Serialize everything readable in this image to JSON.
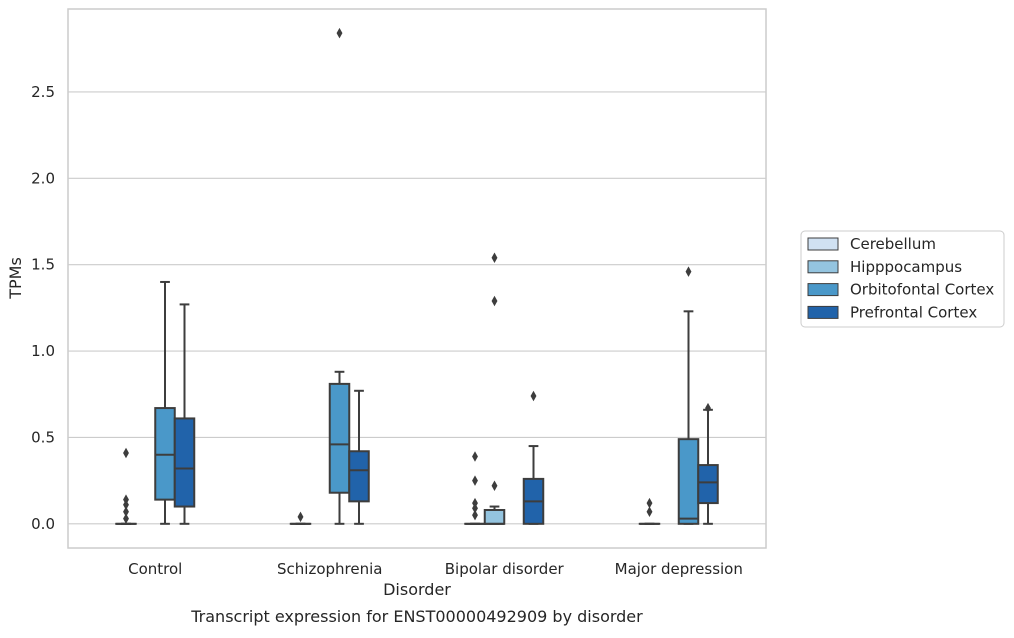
{
  "chart_data": {
    "type": "box",
    "title": "",
    "caption": "Transcript expression for ENST00000492909 by disorder",
    "xlabel": "Disorder",
    "ylabel": "TPMs",
    "ylim": [
      -0.14,
      2.98
    ],
    "yticks": [
      0.0,
      0.5,
      1.0,
      1.5,
      2.0,
      2.5
    ],
    "ytick_labels": [
      "0.0",
      "0.5",
      "1.0",
      "1.5",
      "2.0",
      "2.5"
    ],
    "grid": "horizontal",
    "legend_position": "center-right outside",
    "categories": [
      "Control",
      "Schizophrenia",
      "Bipolar disorder",
      "Major depression"
    ],
    "series": [
      {
        "name": "Cerebellum",
        "color": "#d0e1f2",
        "boxes": [
          {
            "q1": 0,
            "median": 0,
            "q3": 0,
            "whisker_low": 0,
            "whisker_high": 0,
            "outliers": [
              0.03,
              0.07,
              0.11,
              0.14,
              0.41
            ]
          },
          {
            "q1": 0,
            "median": 0,
            "q3": 0,
            "whisker_low": 0,
            "whisker_high": 0,
            "outliers": [
              0.04
            ]
          },
          {
            "q1": 0,
            "median": 0,
            "q3": 0,
            "whisker_low": 0,
            "whisker_high": 0,
            "outliers": [
              0.05,
              0.09,
              0.12,
              0.25,
              0.39
            ]
          },
          {
            "q1": 0,
            "median": 0,
            "q3": 0,
            "whisker_low": 0,
            "whisker_high": 0,
            "outliers": [
              0.07,
              0.12
            ]
          }
        ]
      },
      {
        "name": "Hipppocampus",
        "color": "#94c4df",
        "boxes": [
          null,
          null,
          {
            "q1": 0,
            "median": 0,
            "q3": 0.08,
            "whisker_low": 0,
            "whisker_high": 0.1,
            "outliers": [
              0.22,
              1.29,
              1.54
            ]
          },
          null
        ]
      },
      {
        "name": "Orbitofontal Cortex",
        "color": "#4a98c9",
        "boxes": [
          {
            "q1": 0.14,
            "median": 0.4,
            "q3": 0.67,
            "whisker_low": 0,
            "whisker_high": 1.4,
            "outliers": []
          },
          {
            "q1": 0.18,
            "median": 0.46,
            "q3": 0.81,
            "whisker_low": 0,
            "whisker_high": 0.88,
            "outliers": [
              2.84
            ]
          },
          null,
          {
            "q1": 0,
            "median": 0.03,
            "q3": 0.49,
            "whisker_low": 0,
            "whisker_high": 1.23,
            "outliers": [
              1.46
            ]
          }
        ]
      },
      {
        "name": "Prefrontal Cortex",
        "color": "#2163aa",
        "boxes": [
          {
            "q1": 0.1,
            "median": 0.32,
            "q3": 0.61,
            "whisker_low": 0,
            "whisker_high": 1.27,
            "outliers": []
          },
          {
            "q1": 0.13,
            "median": 0.31,
            "q3": 0.42,
            "whisker_low": 0,
            "whisker_high": 0.77,
            "outliers": []
          },
          {
            "q1": 0,
            "median": 0.13,
            "q3": 0.26,
            "whisker_low": 0,
            "whisker_high": 0.45,
            "outliers": [
              0.74
            ]
          },
          {
            "q1": 0.12,
            "median": 0.24,
            "q3": 0.34,
            "whisker_low": 0,
            "whisker_high": 0.66,
            "outliers": [
              0.67
            ]
          }
        ]
      }
    ]
  }
}
